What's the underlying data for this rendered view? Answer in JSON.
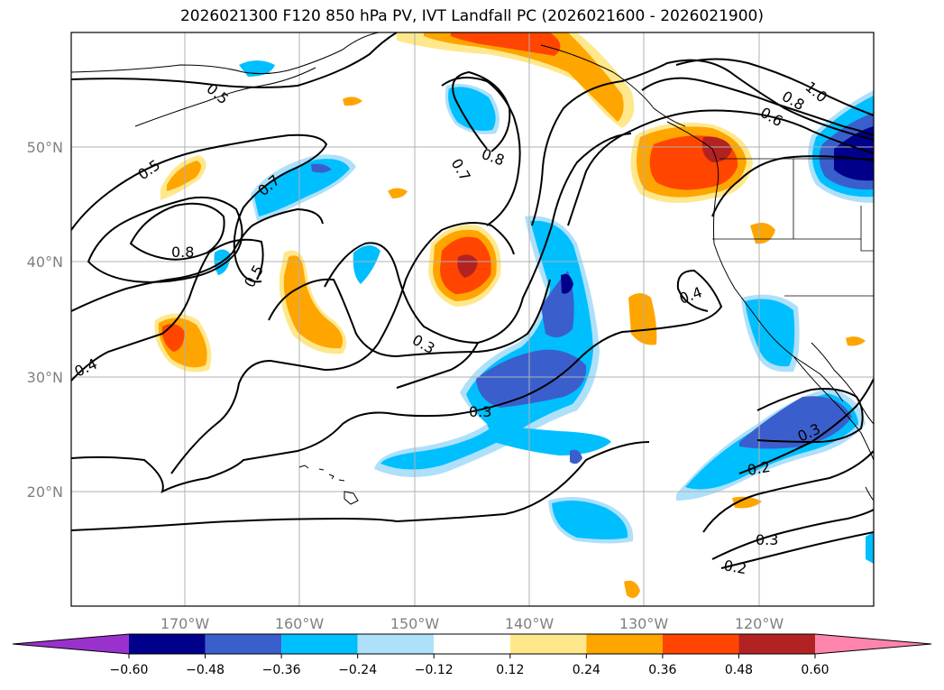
{
  "title": "2026021300 F120 850 hPa PV, IVT Landfall PC (2026021600 - 2026021900)",
  "lat_labels": [
    "50°N",
    "40°N",
    "30°N",
    "20°N"
  ],
  "lon_labels": [
    "170°W",
    "160°W",
    "150°W",
    "140°W",
    "130°W",
    "120°W"
  ],
  "contour_labels": [
    "0.5",
    "0.5",
    "0.7",
    "0.8",
    "0.5",
    "0.4",
    "0.3",
    "0.3",
    "0.7",
    "0.8",
    "0.8",
    "0.6",
    "1.0",
    "0.4",
    "0.3",
    "0.2",
    "0.3",
    "0.2"
  ],
  "colorbar": {
    "ticks": [
      "−0.60",
      "−0.48",
      "−0.36",
      "−0.24",
      "−0.12",
      "0.12",
      "0.24",
      "0.36",
      "0.48",
      "0.60"
    ],
    "colors": [
      "#9932cc",
      "#00008b",
      "#3a5fcd",
      "#00bfff",
      "#afe0fa",
      "#ffffff",
      "#ffe88c",
      "#ffa500",
      "#ff4500",
      "#b22222",
      "#ff85ad"
    ]
  },
  "colors": {
    "pos_light": "#ffe88c",
    "pos_mid": "#ffa500",
    "pos_strong": "#ff4500",
    "pos_max": "#b22222",
    "neg_light": "#afe0fa",
    "neg_mid": "#00bfff",
    "neg_strong": "#3a5fcd",
    "neg_max": "#00008b"
  }
}
